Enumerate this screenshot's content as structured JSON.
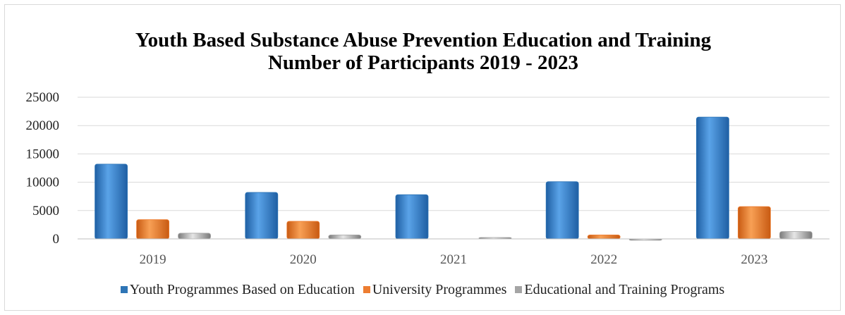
{
  "chart_data": {
    "type": "bar",
    "title_lines": [
      "Youth Based Substance Abuse Prevention Education and Training",
      "Number of Participants  2019 - 2023"
    ],
    "categories": [
      "2019",
      "2020",
      "2021",
      "2022",
      "2023"
    ],
    "series": [
      {
        "name": "Youth Programmes Based on Education",
        "values": [
          13200,
          8200,
          7800,
          10100,
          21500
        ],
        "color": "#2e75b6"
      },
      {
        "name": "University Programmes",
        "values": [
          3400,
          3100,
          0,
          700,
          5700
        ],
        "color": "#ed7d31"
      },
      {
        "name": "Educational and Training Programs",
        "values": [
          1000,
          700,
          250,
          -150,
          1300
        ],
        "color": "#a5a5a5"
      }
    ],
    "yticks": [
      "0",
      "5000",
      "10000",
      "15000",
      "20000",
      "25000"
    ],
    "ylim": [
      0,
      25000
    ],
    "grid": true,
    "legend_position": "bottom"
  }
}
